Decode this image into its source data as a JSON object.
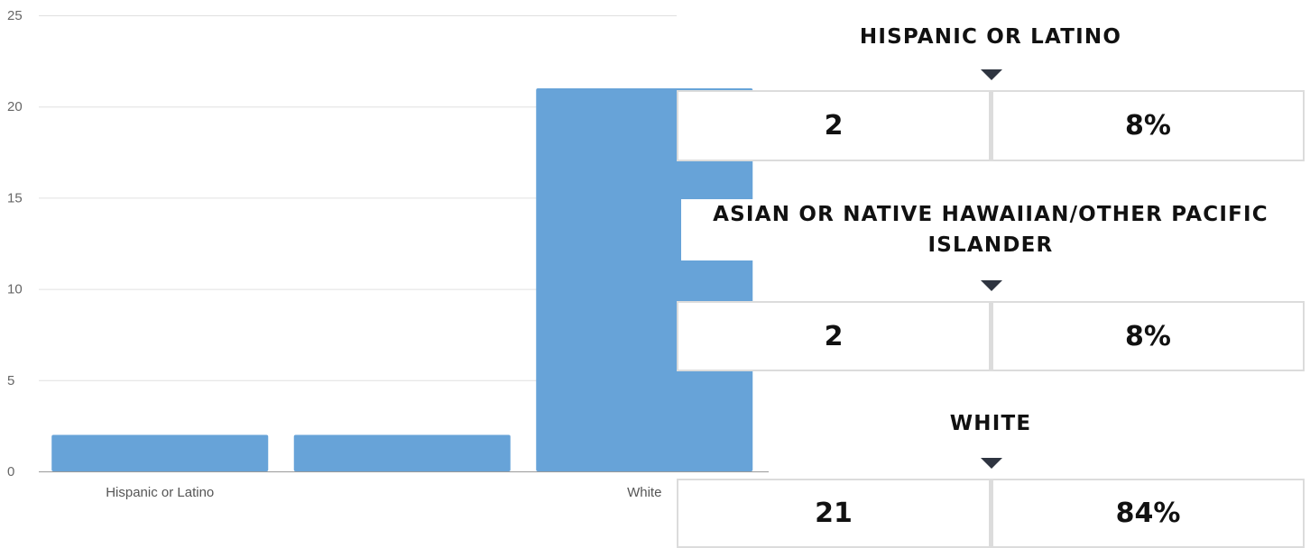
{
  "chart_data": {
    "type": "bar",
    "title": "",
    "xlabel": "",
    "ylabel": "",
    "categories": [
      "Hispanic or Latino",
      "",
      "White"
    ],
    "values": [
      2,
      2,
      21
    ],
    "ylim": [
      0,
      25
    ],
    "yticks": [
      "0",
      "5",
      "10",
      "15",
      "20",
      "25"
    ],
    "grid": true,
    "bar_color": "#67a3d8"
  },
  "breakdown": [
    {
      "title": "HISPANIC OR LATINO",
      "count": "2",
      "percent": "8%"
    },
    {
      "title": "ASIAN OR NATIVE HAWAIIAN/OTHER PACIFIC ISLANDER",
      "count": "2",
      "percent": "8%"
    },
    {
      "title": "WHITE",
      "count": "21",
      "percent": "84%"
    }
  ]
}
